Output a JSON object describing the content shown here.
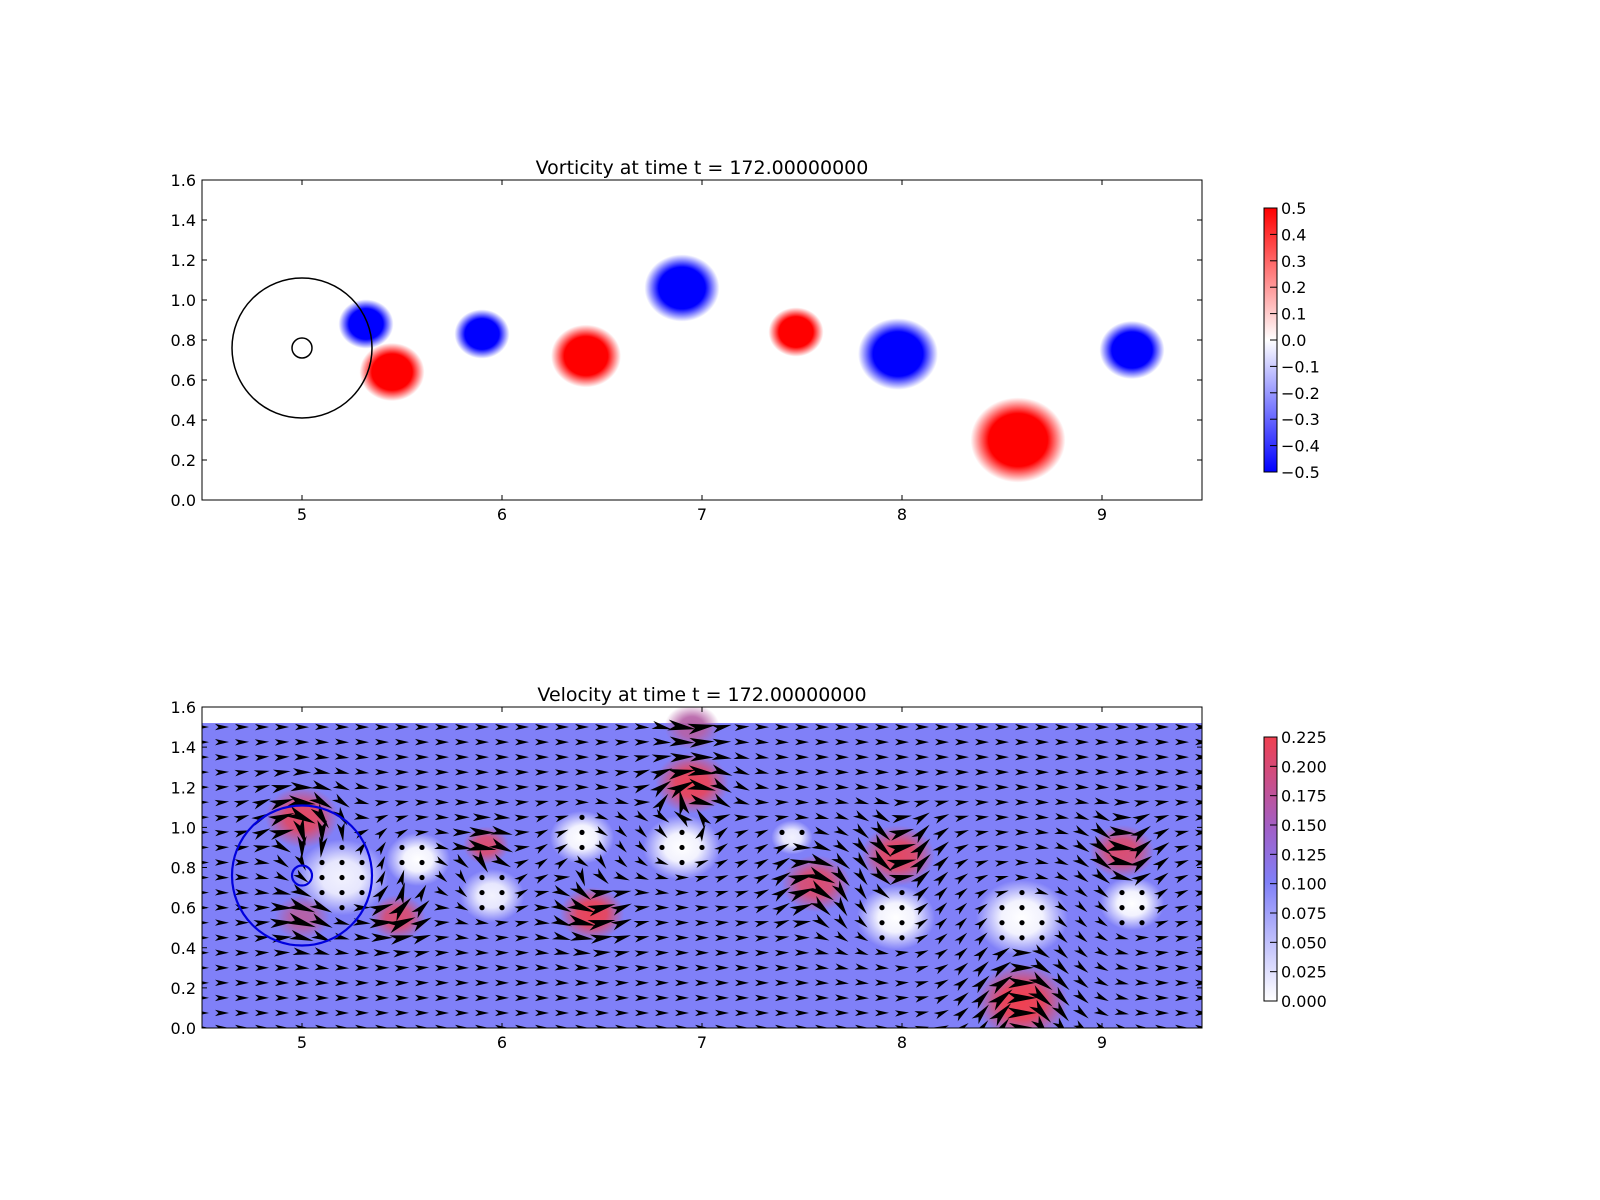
{
  "chart_data": [
    {
      "type": "heatmap",
      "title": "Vorticity at time t =   172.00000000",
      "xlim": [
        4.5,
        9.5
      ],
      "ylim": [
        0.0,
        1.6
      ],
      "xticks": [
        "5",
        "6",
        "7",
        "8",
        "9"
      ],
      "yticks": [
        "0.0",
        "0.2",
        "0.4",
        "0.6",
        "0.8",
        "1.0",
        "1.2",
        "1.4",
        "1.6"
      ],
      "colormap": {
        "low": "#0000ff",
        "mid": "#ffffff",
        "high": "#ff0000"
      },
      "colorbar": {
        "range": [
          -0.5,
          0.5
        ],
        "ticks": [
          "0.5",
          "0.4",
          "0.3",
          "0.2",
          "0.1",
          "0.0",
          "−0.1",
          "−0.2",
          "−0.3",
          "−0.4",
          "−0.5"
        ]
      },
      "vortices": [
        {
          "x": 5.32,
          "y": 0.88,
          "r": 0.11,
          "value": -0.5
        },
        {
          "x": 5.45,
          "y": 0.64,
          "r": 0.13,
          "value": 0.5
        },
        {
          "x": 5.9,
          "y": 0.83,
          "r": 0.11,
          "value": -0.5
        },
        {
          "x": 6.42,
          "y": 0.72,
          "r": 0.14,
          "value": 0.5
        },
        {
          "x": 6.9,
          "y": 1.06,
          "r": 0.15,
          "value": -0.5
        },
        {
          "x": 7.47,
          "y": 0.84,
          "r": 0.11,
          "value": 0.5
        },
        {
          "x": 7.98,
          "y": 0.73,
          "r": 0.16,
          "value": -0.5
        },
        {
          "x": 8.58,
          "y": 0.3,
          "r": 0.19,
          "value": 0.5
        },
        {
          "x": 9.15,
          "y": 0.75,
          "r": 0.13,
          "value": -0.5
        }
      ],
      "circles": [
        {
          "x": 5.0,
          "y": 0.76,
          "r": 0.35,
          "color": "#000000"
        },
        {
          "x": 5.0,
          "y": 0.76,
          "r": 0.05,
          "color": "#000000"
        }
      ]
    },
    {
      "type": "heatmap",
      "title": "Velocity at time t =   172.00000000",
      "xlim": [
        4.5,
        9.5
      ],
      "ylim": [
        0.0,
        1.6
      ],
      "xticks": [
        "5",
        "6",
        "7",
        "8",
        "9"
      ],
      "yticks": [
        "0.0",
        "0.2",
        "0.4",
        "0.6",
        "0.8",
        "1.0",
        "1.2",
        "1.4",
        "1.6"
      ],
      "field_ylim": [
        0.0,
        1.52
      ],
      "colormap": {
        "low": "#ffffff",
        "mid": "#8080f8",
        "high": "#f04050"
      },
      "colorbar": {
        "range": [
          0.0,
          0.225
        ],
        "ticks": [
          "0.225",
          "0.200",
          "0.175",
          "0.150",
          "0.125",
          "0.100",
          "0.075",
          "0.050",
          "0.025",
          "0.000"
        ]
      },
      "background_speed": 0.1,
      "quiver": {
        "x_step": 0.1,
        "y_step": 0.075,
        "x_start": 4.5,
        "y_start": 0.0
      },
      "flow_features": [
        {
          "x": 5.2,
          "y": 0.75,
          "speed": 0.01,
          "r": 0.2
        },
        {
          "x": 5.58,
          "y": 0.84,
          "speed": 0.0,
          "r": 0.14
        },
        {
          "x": 5.95,
          "y": 0.66,
          "speed": 0.01,
          "r": 0.14
        },
        {
          "x": 6.4,
          "y": 0.95,
          "speed": 0.0,
          "r": 0.14
        },
        {
          "x": 6.9,
          "y": 0.9,
          "speed": 0.0,
          "r": 0.17
        },
        {
          "x": 7.45,
          "y": 0.95,
          "speed": 0.01,
          "r": 0.09
        },
        {
          "x": 7.97,
          "y": 0.55,
          "speed": 0.0,
          "r": 0.17
        },
        {
          "x": 8.6,
          "y": 0.55,
          "speed": 0.0,
          "r": 0.2
        },
        {
          "x": 9.15,
          "y": 0.62,
          "speed": 0.0,
          "r": 0.14
        },
        {
          "x": 5.0,
          "y": 1.05,
          "speed": 0.21,
          "r": 0.16
        },
        {
          "x": 5.48,
          "y": 0.55,
          "speed": 0.2,
          "r": 0.12
        },
        {
          "x": 5.92,
          "y": 0.91,
          "speed": 0.2,
          "r": 0.1
        },
        {
          "x": 6.45,
          "y": 0.57,
          "speed": 0.22,
          "r": 0.14
        },
        {
          "x": 6.95,
          "y": 1.22,
          "speed": 0.22,
          "r": 0.16
        },
        {
          "x": 6.95,
          "y": 1.5,
          "speed": 0.16,
          "r": 0.12
        },
        {
          "x": 7.57,
          "y": 0.72,
          "speed": 0.2,
          "r": 0.15
        },
        {
          "x": 7.98,
          "y": 0.86,
          "speed": 0.21,
          "r": 0.16
        },
        {
          "x": 8.6,
          "y": 0.13,
          "speed": 0.225,
          "r": 0.2
        },
        {
          "x": 9.1,
          "y": 0.88,
          "speed": 0.2,
          "r": 0.14
        },
        {
          "x": 5.0,
          "y": 0.55,
          "speed": 0.16,
          "r": 0.12
        }
      ],
      "circles": [
        {
          "x": 5.0,
          "y": 0.76,
          "r": 0.35,
          "color": "#0000dd"
        },
        {
          "x": 5.0,
          "y": 0.76,
          "r": 0.05,
          "color": "#0000dd"
        }
      ]
    }
  ]
}
